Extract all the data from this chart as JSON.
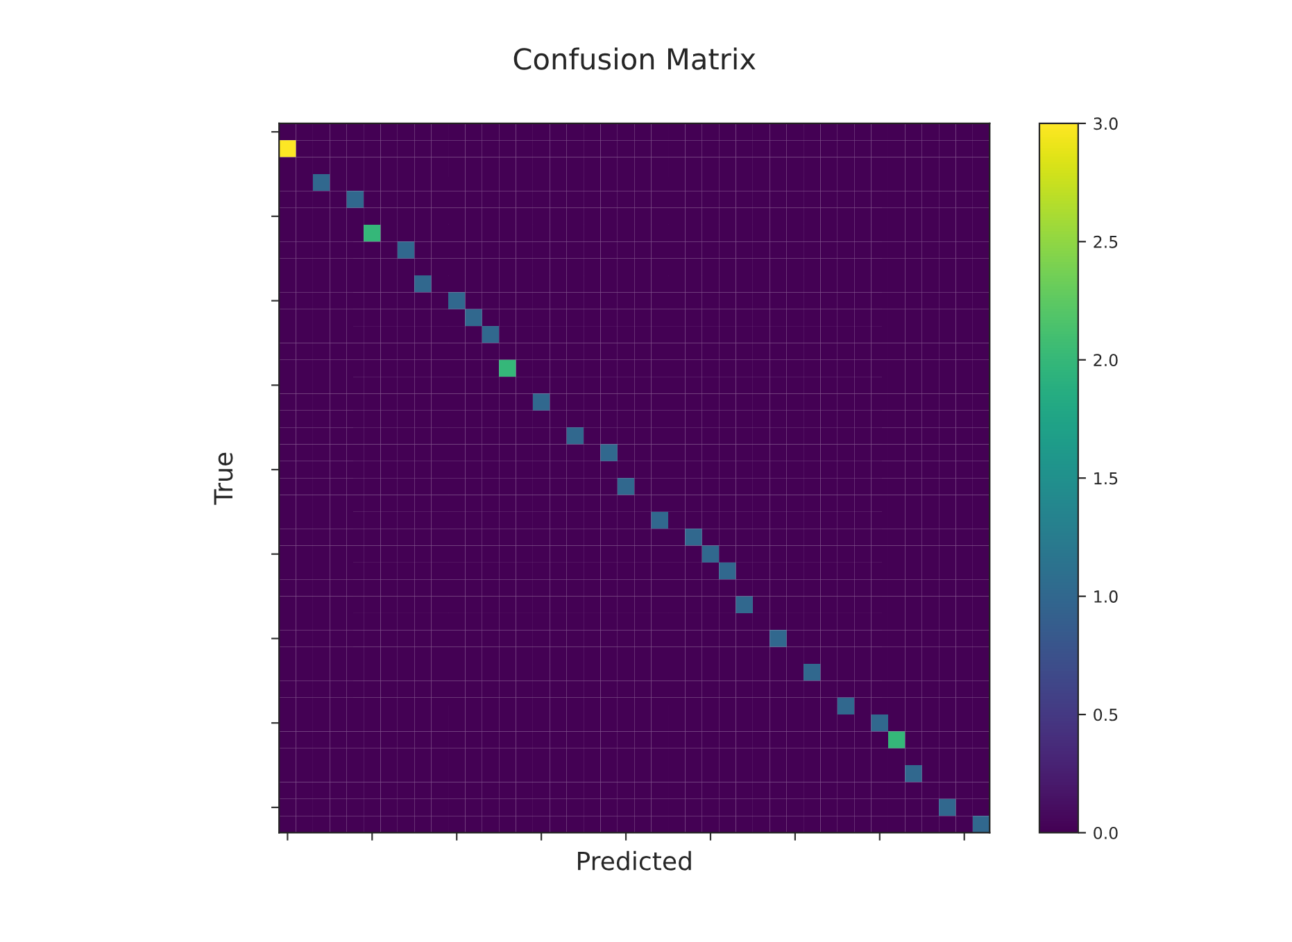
{
  "chart_data": {
    "type": "heatmap",
    "title": "Confusion Matrix",
    "xlabel": "Predicted",
    "ylabel": "True",
    "categories": [
      null,
      null,
      null,
      null,
      null,
      null,
      null,
      null,
      null,
      null,
      null,
      null,
      null,
      null,
      null,
      null,
      null,
      null,
      null,
      null,
      null,
      null,
      null,
      null,
      null,
      null,
      null,
      null,
      null,
      null,
      null,
      null,
      null,
      null,
      null,
      null,
      null,
      null,
      null,
      null,
      null,
      null
    ],
    "y_categories": [
      null,
      null,
      null,
      null,
      null,
      null,
      null,
      null,
      null,
      null,
      null,
      null,
      null,
      null,
      null,
      null,
      null,
      null,
      null,
      null,
      null,
      null,
      null,
      null,
      null,
      null,
      null,
      null,
      null,
      null,
      null,
      null,
      null,
      null,
      null,
      null,
      null,
      null,
      null,
      null,
      null,
      null
    ],
    "clim": [
      0,
      3
    ],
    "cticks": [
      {
        "value": 0,
        "label": "0.0"
      },
      {
        "value": 0.5,
        "label": "0.5"
      },
      {
        "value": 1,
        "label": "1.0"
      },
      {
        "value": 1.5,
        "label": "1.5"
      },
      {
        "value": 2,
        "label": "2.0"
      },
      {
        "value": 2.5,
        "label": "2.5"
      },
      {
        "value": 3,
        "label": "3.0"
      }
    ],
    "cells": [
      [
        0,
        0,
        0,
        0,
        0,
        0,
        0,
        0,
        0,
        0,
        0,
        0,
        0,
        0,
        0,
        0,
        0,
        0,
        0,
        0,
        0,
        0,
        0,
        0,
        0,
        0,
        0,
        0,
        0,
        0,
        0,
        0,
        0,
        0,
        0,
        0,
        0,
        0,
        0,
        0,
        0,
        0
      ],
      [
        3,
        0,
        0,
        0,
        0,
        0,
        0,
        0,
        0,
        0,
        0,
        0,
        0,
        0,
        0,
        0,
        0,
        0,
        0,
        0,
        0,
        0,
        0,
        0,
        0,
        0,
        0,
        0,
        0,
        0,
        0,
        0,
        0,
        0,
        0,
        0,
        0,
        0,
        0,
        0,
        0,
        0
      ],
      [
        0,
        0,
        0,
        0,
        0,
        0,
        0,
        0,
        0,
        0,
        0,
        0,
        0,
        0,
        0,
        0,
        0,
        0,
        0,
        0,
        0,
        0,
        0,
        0,
        0,
        0,
        0,
        0,
        0,
        0,
        0,
        0,
        0,
        0,
        0,
        0,
        0,
        0,
        0,
        0,
        0,
        0
      ],
      [
        0,
        0,
        1,
        0,
        0,
        0,
        0,
        0,
        0,
        0,
        0,
        0,
        0,
        0,
        0,
        0,
        0,
        0,
        0,
        0,
        0,
        0,
        0,
        0,
        0,
        0,
        0,
        0,
        0,
        0,
        0,
        0,
        0,
        0,
        0,
        0,
        0,
        0,
        0,
        0,
        0,
        0
      ],
      [
        0,
        0,
        0,
        0,
        1,
        0,
        0,
        0,
        0,
        0,
        0,
        0,
        0,
        0,
        0,
        0,
        0,
        0,
        0,
        0,
        0,
        0,
        0,
        0,
        0,
        0,
        0,
        0,
        0,
        0,
        0,
        0,
        0,
        0,
        0,
        0,
        0,
        0,
        0,
        0,
        0,
        0
      ],
      [
        0,
        0,
        0,
        0,
        0,
        0,
        0,
        0,
        0,
        0,
        0,
        0,
        0,
        0,
        0,
        0,
        0,
        0,
        0,
        0,
        0,
        0,
        0,
        0,
        0,
        0,
        0,
        0,
        0,
        0,
        0,
        0,
        0,
        0,
        0,
        0,
        0,
        0,
        0,
        0,
        0,
        0
      ],
      [
        0,
        0,
        0,
        0,
        0,
        2,
        0,
        0,
        0,
        0,
        0,
        0,
        0,
        0,
        0,
        0,
        0,
        0,
        0,
        0,
        0,
        0,
        0,
        0,
        0,
        0,
        0,
        0,
        0,
        0,
        0,
        0,
        0,
        0,
        0,
        0,
        0,
        0,
        0,
        0,
        0,
        0
      ],
      [
        0,
        0,
        0,
        0,
        0,
        0,
        0,
        1,
        0,
        0,
        0,
        0,
        0,
        0,
        0,
        0,
        0,
        0,
        0,
        0,
        0,
        0,
        0,
        0,
        0,
        0,
        0,
        0,
        0,
        0,
        0,
        0,
        0,
        0,
        0,
        0,
        0,
        0,
        0,
        0,
        0,
        0
      ],
      [
        0,
        0,
        0,
        0,
        0,
        0,
        0,
        0,
        0,
        0,
        0,
        0,
        0,
        0,
        0,
        0,
        0,
        0,
        0,
        0,
        0,
        0,
        0,
        0,
        0,
        0,
        0,
        0,
        0,
        0,
        0,
        0,
        0,
        0,
        0,
        0,
        0,
        0,
        0,
        0,
        0,
        0
      ],
      [
        0,
        0,
        0,
        0,
        0,
        0,
        0,
        0,
        1,
        0,
        0,
        0,
        0,
        0,
        0,
        0,
        0,
        0,
        0,
        0,
        0,
        0,
        0,
        0,
        0,
        0,
        0,
        0,
        0,
        0,
        0,
        0,
        0,
        0,
        0,
        0,
        0,
        0,
        0,
        0,
        0,
        0
      ],
      [
        0,
        0,
        0,
        0,
        0,
        0,
        0,
        0,
        0,
        0,
        1,
        0,
        0,
        0,
        0,
        0,
        0,
        0,
        0,
        0,
        0,
        0,
        0,
        0,
        0,
        0,
        0,
        0,
        0,
        0,
        0,
        0,
        0,
        0,
        0,
        0,
        0,
        0,
        0,
        0,
        0,
        0
      ],
      [
        0,
        0,
        0,
        0,
        0,
        0,
        0,
        0,
        0,
        0,
        0,
        1,
        0,
        0,
        0,
        0,
        0,
        0,
        0,
        0,
        0,
        0,
        0,
        0,
        0,
        0,
        0,
        0,
        0,
        0,
        0,
        0,
        0,
        0,
        0,
        0,
        0,
        0,
        0,
        0,
        0,
        0
      ],
      [
        0,
        0,
        0,
        0,
        0,
        0,
        0,
        0,
        0,
        0,
        0,
        0,
        1,
        0,
        0,
        0,
        0,
        0,
        0,
        0,
        0,
        0,
        0,
        0,
        0,
        0,
        0,
        0,
        0,
        0,
        0,
        0,
        0,
        0,
        0,
        0,
        0,
        0,
        0,
        0,
        0,
        0
      ],
      [
        0,
        0,
        0,
        0,
        0,
        0,
        0,
        0,
        0,
        0,
        0,
        0,
        0,
        0,
        0,
        0,
        0,
        0,
        0,
        0,
        0,
        0,
        0,
        0,
        0,
        0,
        0,
        0,
        0,
        0,
        0,
        0,
        0,
        0,
        0,
        0,
        0,
        0,
        0,
        0,
        0,
        0
      ],
      [
        0,
        0,
        0,
        0,
        0,
        0,
        0,
        0,
        0,
        0,
        0,
        0,
        0,
        2,
        0,
        0,
        0,
        0,
        0,
        0,
        0,
        0,
        0,
        0,
        0,
        0,
        0,
        0,
        0,
        0,
        0,
        0,
        0,
        0,
        0,
        0,
        0,
        0,
        0,
        0,
        0,
        0
      ],
      [
        0,
        0,
        0,
        0,
        0,
        0,
        0,
        0,
        0,
        0,
        0,
        0,
        0,
        0,
        0,
        0,
        0,
        0,
        0,
        0,
        0,
        0,
        0,
        0,
        0,
        0,
        0,
        0,
        0,
        0,
        0,
        0,
        0,
        0,
        0,
        0,
        0,
        0,
        0,
        0,
        0,
        0
      ],
      [
        0,
        0,
        0,
        0,
        0,
        0,
        0,
        0,
        0,
        0,
        0,
        0,
        0,
        0,
        0,
        1,
        0,
        0,
        0,
        0,
        0,
        0,
        0,
        0,
        0,
        0,
        0,
        0,
        0,
        0,
        0,
        0,
        0,
        0,
        0,
        0,
        0,
        0,
        0,
        0,
        0,
        0
      ],
      [
        0,
        0,
        0,
        0,
        0,
        0,
        0,
        0,
        0,
        0,
        0,
        0,
        0,
        0,
        0,
        0,
        0,
        0,
        0,
        0,
        0,
        0,
        0,
        0,
        0,
        0,
        0,
        0,
        0,
        0,
        0,
        0,
        0,
        0,
        0,
        0,
        0,
        0,
        0,
        0,
        0,
        0
      ],
      [
        0,
        0,
        0,
        0,
        0,
        0,
        0,
        0,
        0,
        0,
        0,
        0,
        0,
        0,
        0,
        0,
        0,
        1,
        0,
        0,
        0,
        0,
        0,
        0,
        0,
        0,
        0,
        0,
        0,
        0,
        0,
        0,
        0,
        0,
        0,
        0,
        0,
        0,
        0,
        0,
        0,
        0
      ],
      [
        0,
        0,
        0,
        0,
        0,
        0,
        0,
        0,
        0,
        0,
        0,
        0,
        0,
        0,
        0,
        0,
        0,
        0,
        0,
        1,
        0,
        0,
        0,
        0,
        0,
        0,
        0,
        0,
        0,
        0,
        0,
        0,
        0,
        0,
        0,
        0,
        0,
        0,
        0,
        0,
        0,
        0
      ],
      [
        0,
        0,
        0,
        0,
        0,
        0,
        0,
        0,
        0,
        0,
        0,
        0,
        0,
        0,
        0,
        0,
        0,
        0,
        0,
        0,
        0,
        0,
        0,
        0,
        0,
        0,
        0,
        0,
        0,
        0,
        0,
        0,
        0,
        0,
        0,
        0,
        0,
        0,
        0,
        0,
        0,
        0
      ],
      [
        0,
        0,
        0,
        0,
        0,
        0,
        0,
        0,
        0,
        0,
        0,
        0,
        0,
        0,
        0,
        0,
        0,
        0,
        0,
        0,
        1,
        0,
        0,
        0,
        0,
        0,
        0,
        0,
        0,
        0,
        0,
        0,
        0,
        0,
        0,
        0,
        0,
        0,
        0,
        0,
        0,
        0
      ],
      [
        0,
        0,
        0,
        0,
        0,
        0,
        0,
        0,
        0,
        0,
        0,
        0,
        0,
        0,
        0,
        0,
        0,
        0,
        0,
        0,
        0,
        0,
        0,
        0,
        0,
        0,
        0,
        0,
        0,
        0,
        0,
        0,
        0,
        0,
        0,
        0,
        0,
        0,
        0,
        0,
        0,
        0
      ],
      [
        0,
        0,
        0,
        0,
        0,
        0,
        0,
        0,
        0,
        0,
        0,
        0,
        0,
        0,
        0,
        0,
        0,
        0,
        0,
        0,
        0,
        0,
        1,
        0,
        0,
        0,
        0,
        0,
        0,
        0,
        0,
        0,
        0,
        0,
        0,
        0,
        0,
        0,
        0,
        0,
        0,
        0
      ],
      [
        0,
        0,
        0,
        0,
        0,
        0,
        0,
        0,
        0,
        0,
        0,
        0,
        0,
        0,
        0,
        0,
        0,
        0,
        0,
        0,
        0,
        0,
        0,
        0,
        1,
        0,
        0,
        0,
        0,
        0,
        0,
        0,
        0,
        0,
        0,
        0,
        0,
        0,
        0,
        0,
        0,
        0
      ],
      [
        0,
        0,
        0,
        0,
        0,
        0,
        0,
        0,
        0,
        0,
        0,
        0,
        0,
        0,
        0,
        0,
        0,
        0,
        0,
        0,
        0,
        0,
        0,
        0,
        0,
        1,
        0,
        0,
        0,
        0,
        0,
        0,
        0,
        0,
        0,
        0,
        0,
        0,
        0,
        0,
        0,
        0
      ],
      [
        0,
        0,
        0,
        0,
        0,
        0,
        0,
        0,
        0,
        0,
        0,
        0,
        0,
        0,
        0,
        0,
        0,
        0,
        0,
        0,
        0,
        0,
        0,
        0,
        0,
        0,
        1,
        0,
        0,
        0,
        0,
        0,
        0,
        0,
        0,
        0,
        0,
        0,
        0,
        0,
        0,
        0
      ],
      [
        0,
        0,
        0,
        0,
        0,
        0,
        0,
        0,
        0,
        0,
        0,
        0,
        0,
        0,
        0,
        0,
        0,
        0,
        0,
        0,
        0,
        0,
        0,
        0,
        0,
        0,
        0,
        0,
        0,
        0,
        0,
        0,
        0,
        0,
        0,
        0,
        0,
        0,
        0,
        0,
        0,
        0
      ],
      [
        0,
        0,
        0,
        0,
        0,
        0,
        0,
        0,
        0,
        0,
        0,
        0,
        0,
        0,
        0,
        0,
        0,
        0,
        0,
        0,
        0,
        0,
        0,
        0,
        0,
        0,
        0,
        1,
        0,
        0,
        0,
        0,
        0,
        0,
        0,
        0,
        0,
        0,
        0,
        0,
        0,
        0
      ],
      [
        0,
        0,
        0,
        0,
        0,
        0,
        0,
        0,
        0,
        0,
        0,
        0,
        0,
        0,
        0,
        0,
        0,
        0,
        0,
        0,
        0,
        0,
        0,
        0,
        0,
        0,
        0,
        0,
        0,
        0,
        0,
        0,
        0,
        0,
        0,
        0,
        0,
        0,
        0,
        0,
        0,
        0
      ],
      [
        0,
        0,
        0,
        0,
        0,
        0,
        0,
        0,
        0,
        0,
        0,
        0,
        0,
        0,
        0,
        0,
        0,
        0,
        0,
        0,
        0,
        0,
        0,
        0,
        0,
        0,
        0,
        0,
        0,
        1,
        0,
        0,
        0,
        0,
        0,
        0,
        0,
        0,
        0,
        0,
        0,
        0
      ],
      [
        0,
        0,
        0,
        0,
        0,
        0,
        0,
        0,
        0,
        0,
        0,
        0,
        0,
        0,
        0,
        0,
        0,
        0,
        0,
        0,
        0,
        0,
        0,
        0,
        0,
        0,
        0,
        0,
        0,
        0,
        0,
        0,
        0,
        0,
        0,
        0,
        0,
        0,
        0,
        0,
        0,
        0
      ],
      [
        0,
        0,
        0,
        0,
        0,
        0,
        0,
        0,
        0,
        0,
        0,
        0,
        0,
        0,
        0,
        0,
        0,
        0,
        0,
        0,
        0,
        0,
        0,
        0,
        0,
        0,
        0,
        0,
        0,
        0,
        0,
        1,
        0,
        0,
        0,
        0,
        0,
        0,
        0,
        0,
        0,
        0
      ],
      [
        0,
        0,
        0,
        0,
        0,
        0,
        0,
        0,
        0,
        0,
        0,
        0,
        0,
        0,
        0,
        0,
        0,
        0,
        0,
        0,
        0,
        0,
        0,
        0,
        0,
        0,
        0,
        0,
        0,
        0,
        0,
        0,
        0,
        0,
        0,
        0,
        0,
        0,
        0,
        0,
        0,
        0
      ],
      [
        0,
        0,
        0,
        0,
        0,
        0,
        0,
        0,
        0,
        0,
        0,
        0,
        0,
        0,
        0,
        0,
        0,
        0,
        0,
        0,
        0,
        0,
        0,
        0,
        0,
        0,
        0,
        0,
        0,
        0,
        0,
        0,
        0,
        1,
        0,
        0,
        0,
        0,
        0,
        0,
        0,
        0
      ],
      [
        0,
        0,
        0,
        0,
        0,
        0,
        0,
        0,
        0,
        0,
        0,
        0,
        0,
        0,
        0,
        0,
        0,
        0,
        0,
        0,
        0,
        0,
        0,
        0,
        0,
        0,
        0,
        0,
        0,
        0,
        0,
        0,
        0,
        0,
        0,
        1,
        0,
        0,
        0,
        0,
        0,
        0
      ],
      [
        0,
        0,
        0,
        0,
        0,
        0,
        0,
        0,
        0,
        0,
        0,
        0,
        0,
        0,
        0,
        0,
        0,
        0,
        0,
        0,
        0,
        0,
        0,
        0,
        0,
        0,
        0,
        0,
        0,
        0,
        0,
        0,
        0,
        0,
        0,
        0,
        2,
        0,
        0,
        0,
        0,
        0
      ],
      [
        0,
        0,
        0,
        0,
        0,
        0,
        0,
        0,
        0,
        0,
        0,
        0,
        0,
        0,
        0,
        0,
        0,
        0,
        0,
        0,
        0,
        0,
        0,
        0,
        0,
        0,
        0,
        0,
        0,
        0,
        0,
        0,
        0,
        0,
        0,
        0,
        0,
        0,
        0,
        0,
        0,
        0
      ],
      [
        0,
        0,
        0,
        0,
        0,
        0,
        0,
        0,
        0,
        0,
        0,
        0,
        0,
        0,
        0,
        0,
        0,
        0,
        0,
        0,
        0,
        0,
        0,
        0,
        0,
        0,
        0,
        0,
        0,
        0,
        0,
        0,
        0,
        0,
        0,
        0,
        0,
        1,
        0,
        0,
        0,
        0
      ],
      [
        0,
        0,
        0,
        0,
        0,
        0,
        0,
        0,
        0,
        0,
        0,
        0,
        0,
        0,
        0,
        0,
        0,
        0,
        0,
        0,
        0,
        0,
        0,
        0,
        0,
        0,
        0,
        0,
        0,
        0,
        0,
        0,
        0,
        0,
        0,
        0,
        0,
        0,
        0,
        0,
        0,
        0
      ],
      [
        0,
        0,
        0,
        0,
        0,
        0,
        0,
        0,
        0,
        0,
        0,
        0,
        0,
        0,
        0,
        0,
        0,
        0,
        0,
        0,
        0,
        0,
        0,
        0,
        0,
        0,
        0,
        0,
        0,
        0,
        0,
        0,
        0,
        0,
        0,
        0,
        0,
        0,
        0,
        1,
        0,
        0
      ],
      [
        0,
        0,
        0,
        0,
        0,
        0,
        0,
        0,
        0,
        0,
        0,
        0,
        0,
        0,
        0,
        0,
        0,
        0,
        0,
        0,
        0,
        0,
        0,
        0,
        0,
        0,
        0,
        0,
        0,
        0,
        0,
        0,
        0,
        0,
        0,
        0,
        0,
        0,
        0,
        0,
        0,
        1
      ]
    ]
  }
}
